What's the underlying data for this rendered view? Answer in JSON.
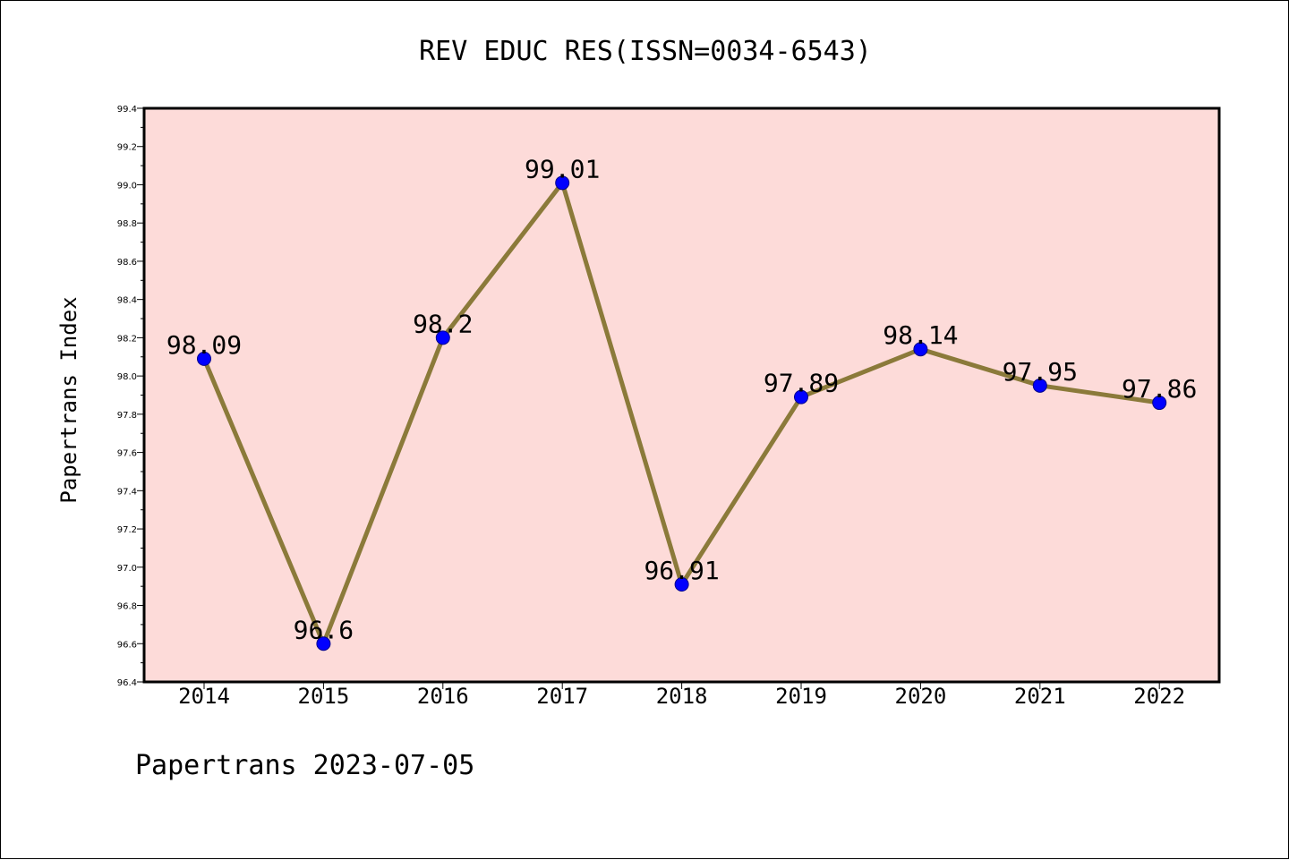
{
  "chart_data": {
    "type": "line",
    "title": "REV EDUC RES(ISSN=0034-6543)",
    "ylabel": "Papertrans Index",
    "xlabel": "",
    "categories": [
      "2014",
      "2015",
      "2016",
      "2017",
      "2018",
      "2019",
      "2020",
      "2021",
      "2022"
    ],
    "values": [
      98.09,
      96.6,
      98.2,
      99.01,
      96.91,
      97.89,
      98.14,
      97.95,
      97.86
    ],
    "data_labels": [
      "98.09",
      "96.6",
      "98.2",
      "99.01",
      "96.91",
      "97.89",
      "98.14",
      "97.95",
      "97.86"
    ],
    "ylim": [
      96.4,
      99.4
    ],
    "yticks": [
      "96.4",
      "96.6",
      "96.8",
      "97.0",
      "97.2",
      "97.4",
      "97.6",
      "97.8",
      "98.0",
      "98.2",
      "98.4",
      "98.6",
      "98.8",
      "99.0",
      "99.2",
      "99.4"
    ],
    "grid": false,
    "colors": {
      "plot_background": "#fddbd9",
      "line": "#8b7a3a",
      "marker": "#0000ff"
    }
  },
  "footer": "Papertrans 2023-07-05"
}
